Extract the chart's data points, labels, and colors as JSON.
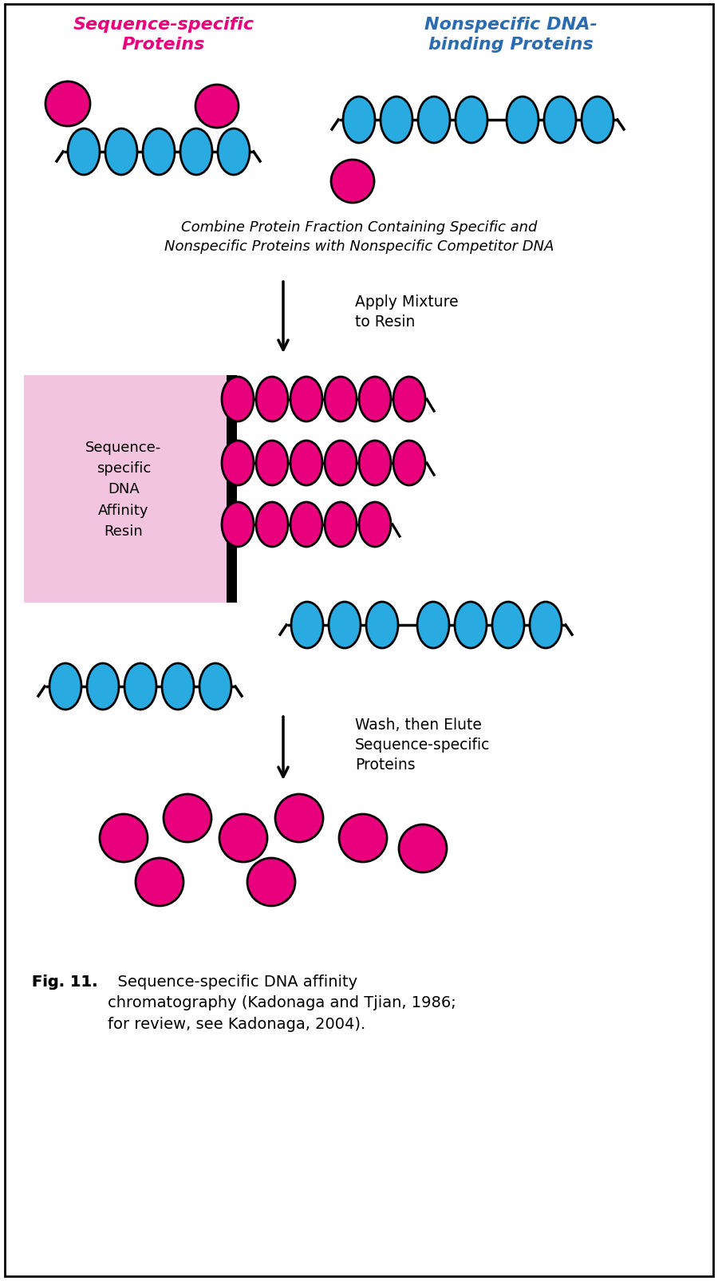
{
  "fig_width": 9.0,
  "fig_height": 16.06,
  "bg_color": "#ffffff",
  "magenta": "#E8007D",
  "cyan": "#29ABE2",
  "pink_box": "#F2C4E0",
  "text_color": "#000000",
  "label_seq_specific_color": "#E8007D",
  "label_nonspecific_color": "#2B6CB0",
  "label_seq_specific": "Sequence-specific\nProteins",
  "label_nonspecific": "Nonspecific DNA-\nbinding Proteins",
  "caption_text": "Combine Protein Fraction Containing Specific and\nNonspecific Proteins with Nonspecific Competitor DNA",
  "arrow1_text": "Apply Mixture\nto Resin",
  "resin_label": "Sequence-\nspecific\nDNA\nAffinity\nResin",
  "arrow2_text": "Wash, then Elute\nSequence-specific\nProteins",
  "fig_caption_bold": "Fig. 11.",
  "fig_caption_normal": "  Sequence-specific DNA affinity\nchromatography (Kadonaga and Tjian, 1986;\nfor review, see Kadonaga, 2004)."
}
